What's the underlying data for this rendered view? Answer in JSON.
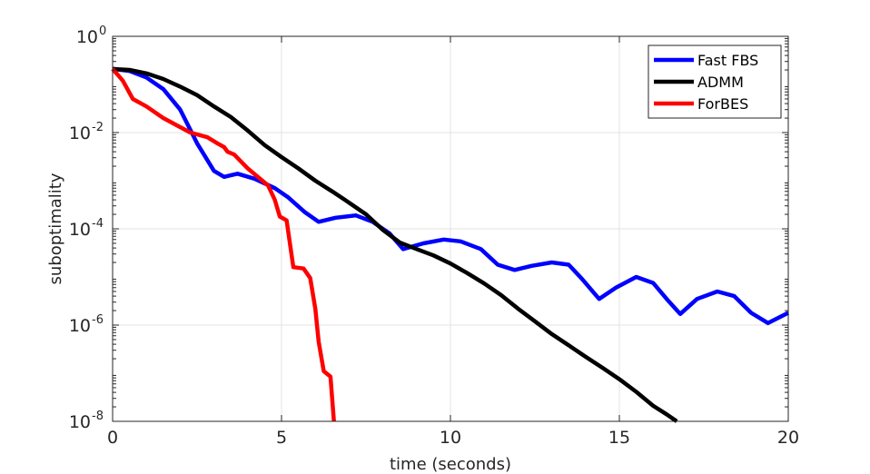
{
  "chart_data": {
    "type": "line",
    "xlabel": "time (seconds)",
    "ylabel": "suboptimality",
    "xlim": [
      0,
      20
    ],
    "ylim": [
      1e-08,
      1
    ],
    "yscale": "log",
    "xticks": [
      0,
      5,
      10,
      15,
      20
    ],
    "yticks": [
      {
        "base": "10",
        "exp": "0"
      },
      {
        "base": "10",
        "exp": "-2"
      },
      {
        "base": "10",
        "exp": "-4"
      },
      {
        "base": "10",
        "exp": "-6"
      },
      {
        "base": "10",
        "exp": "-8"
      }
    ],
    "grid": true,
    "legend_position": "top-right",
    "series": [
      {
        "name": "Fast FBS",
        "color": "#0000ff",
        "points": [
          [
            0,
            0.21
          ],
          [
            0.5,
            0.19
          ],
          [
            1,
            0.14
          ],
          [
            1.5,
            0.08
          ],
          [
            2,
            0.03
          ],
          [
            2.5,
            0.006
          ],
          [
            3,
            0.0016
          ],
          [
            3.3,
            0.0012
          ],
          [
            3.7,
            0.0014
          ],
          [
            4.2,
            0.0011
          ],
          [
            4.8,
            0.0007
          ],
          [
            5.2,
            0.00045
          ],
          [
            5.7,
            0.00022
          ],
          [
            6.1,
            0.00014
          ],
          [
            6.6,
            0.00017
          ],
          [
            7.2,
            0.00019
          ],
          [
            7.7,
            0.00014
          ],
          [
            8.2,
            8e-05
          ],
          [
            8.6,
            3.8e-05
          ],
          [
            9.2,
            5e-05
          ],
          [
            9.8,
            6e-05
          ],
          [
            10.3,
            5.5e-05
          ],
          [
            10.9,
            3.8e-05
          ],
          [
            11.4,
            1.8e-05
          ],
          [
            11.9,
            1.4e-05
          ],
          [
            12.4,
            1.7e-05
          ],
          [
            13.0,
            2e-05
          ],
          [
            13.5,
            1.8e-05
          ],
          [
            13.9,
            9e-06
          ],
          [
            14.4,
            3.5e-06
          ],
          [
            14.9,
            6e-06
          ],
          [
            15.5,
            1e-05
          ],
          [
            16.0,
            7.5e-06
          ],
          [
            16.4,
            3.5e-06
          ],
          [
            16.8,
            1.7e-06
          ],
          [
            17.3,
            3.5e-06
          ],
          [
            17.9,
            5e-06
          ],
          [
            18.4,
            4e-06
          ],
          [
            18.9,
            1.8e-06
          ],
          [
            19.4,
            1.1e-06
          ],
          [
            20,
            1.8e-06
          ]
        ]
      },
      {
        "name": "ADMM",
        "color": "#000000",
        "points": [
          [
            0,
            0.21
          ],
          [
            0.5,
            0.2
          ],
          [
            1,
            0.17
          ],
          [
            1.5,
            0.13
          ],
          [
            2,
            0.09
          ],
          [
            2.5,
            0.06
          ],
          [
            3,
            0.035
          ],
          [
            3.5,
            0.021
          ],
          [
            4,
            0.011
          ],
          [
            4.5,
            0.0055
          ],
          [
            5,
            0.0031
          ],
          [
            5.5,
            0.0018
          ],
          [
            6,
            0.001
          ],
          [
            6.5,
            0.0006
          ],
          [
            7,
            0.00035
          ],
          [
            7.5,
            0.0002
          ],
          [
            8,
            9.5e-05
          ],
          [
            8.5,
            5.2e-05
          ],
          [
            9,
            3.8e-05
          ],
          [
            9.5,
            2.8e-05
          ],
          [
            10,
            1.9e-05
          ],
          [
            10.5,
            1.2e-05
          ],
          [
            11,
            7.3e-06
          ],
          [
            11.5,
            4.2e-06
          ],
          [
            12,
            2.2e-06
          ],
          [
            12.5,
            1.2e-06
          ],
          [
            13,
            6.5e-07
          ],
          [
            13.5,
            3.8e-07
          ],
          [
            14,
            2.2e-07
          ],
          [
            14.5,
            1.3e-07
          ],
          [
            15,
            7.5e-08
          ],
          [
            15.5,
            4.1e-08
          ],
          [
            16,
            2.1e-08
          ],
          [
            16.4,
            1.4e-08
          ],
          [
            16.7,
            1e-08
          ]
        ]
      },
      {
        "name": "ForBES",
        "color": "#ff0000",
        "points": [
          [
            0,
            0.21
          ],
          [
            0.3,
            0.12
          ],
          [
            0.6,
            0.05
          ],
          [
            1,
            0.035
          ],
          [
            1.5,
            0.02
          ],
          [
            2,
            0.013
          ],
          [
            2.3,
            0.01
          ],
          [
            2.8,
            0.008
          ],
          [
            3.1,
            0.006
          ],
          [
            3.3,
            0.005
          ],
          [
            3.4,
            0.004
          ],
          [
            3.6,
            0.0035
          ],
          [
            3.8,
            0.0025
          ],
          [
            4.0,
            0.0018
          ],
          [
            4.3,
            0.0012
          ],
          [
            4.6,
            0.0008
          ],
          [
            4.8,
            0.0004
          ],
          [
            4.95,
            0.00018
          ],
          [
            5.15,
            0.00015
          ],
          [
            5.35,
            1.6e-05
          ],
          [
            5.65,
            1.5e-05
          ],
          [
            5.85,
            9.5e-06
          ],
          [
            6.0,
            2.2e-06
          ],
          [
            6.1,
            4.5e-07
          ],
          [
            6.25,
            1.1e-07
          ],
          [
            6.45,
            8.5e-08
          ],
          [
            6.55,
            1e-08
          ]
        ]
      }
    ]
  }
}
